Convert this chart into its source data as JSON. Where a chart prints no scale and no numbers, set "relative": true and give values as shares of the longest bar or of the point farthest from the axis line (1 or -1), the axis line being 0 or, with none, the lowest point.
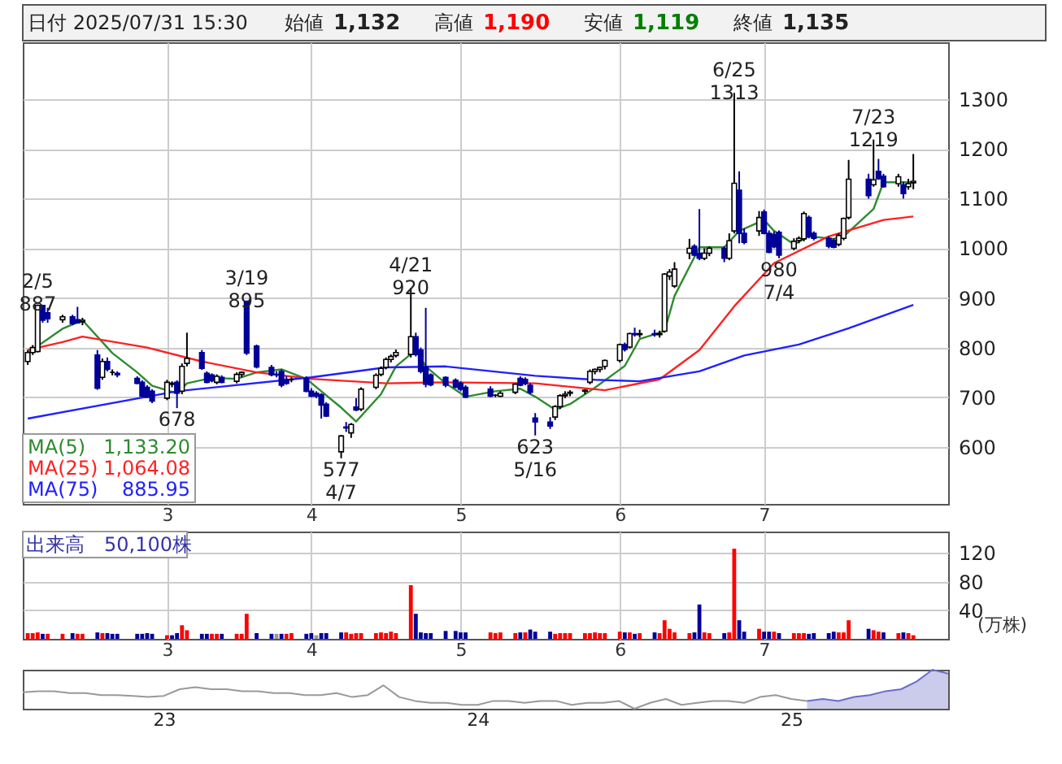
{
  "chart_data": [
    {
      "type": "candlestick",
      "title": "日付 2025/07/31 15:30",
      "annotations": [
        "始値",
        "1,132",
        "高値",
        "1,190",
        "安値",
        "1,119",
        "終値",
        "1,135",
        "1,133.20",
        "1,064.08",
        "885.95",
        {
          "text": "2/5\n887",
          "x": "2025-02-05",
          "y": 887
        },
        {
          "text": "678",
          "x": "2025-03-05",
          "y": 678
        },
        {
          "text": "3/19\n895",
          "x": "2025-03-19",
          "y": 895
        },
        {
          "text": "577\n4/7",
          "x": "2025-04-07",
          "y": 577
        },
        {
          "text": "4/21\n920",
          "x": "2025-04-21",
          "y": 920
        },
        {
          "text": "623\n5/16",
          "x": "2025-05-16",
          "y": 623
        },
        {
          "text": "6/25\n1313",
          "x": "2025-06-25",
          "y": 1313
        },
        {
          "text": "980\n7/4",
          "x": "2025-07-04",
          "y": 980
        },
        {
          "text": "7/23\n1219",
          "x": "2025-07-23",
          "y": 1219
        }
      ],
      "series": [
        {
          "type": "line",
          "name": "MA(5)",
          "color": "#2e8b2e",
          "x": [
            "2025-02-03",
            "2025-02-10",
            "2025-02-14",
            "2025-02-20",
            "2025-02-25",
            "2025-02-28",
            "2025-03-05",
            "2025-03-07",
            "2025-03-12",
            "2025-03-17",
            "2025-03-21",
            "2025-03-26",
            "2025-03-31",
            "2025-04-03",
            "2025-04-07",
            "2025-04-10",
            "2025-04-15",
            "2025-04-18",
            "2025-04-22",
            "2025-04-24",
            "2025-04-28",
            "2025-05-02",
            "2025-05-08",
            "2025-05-13",
            "2025-05-16",
            "2025-05-20",
            "2025-05-23",
            "2025-05-28",
            "2025-06-03",
            "2025-06-06",
            "2025-06-11",
            "2025-06-13",
            "2025-06-18",
            "2025-06-23",
            "2025-06-26",
            "2025-07-01",
            "2025-07-03",
            "2025-07-07",
            "2025-07-10",
            "2025-07-15",
            "2025-07-17",
            "2025-07-23",
            "2025-07-25",
            "2025-07-30",
            "2025-07-31"
          ],
          "values": [
            789,
            838,
            855,
            789,
            750,
            723,
            708,
            728,
            739,
            737,
            750,
            756,
            737,
            712,
            679,
            651,
            706,
            762,
            795,
            762,
            728,
            701,
            712,
            717,
            701,
            675,
            686,
            719,
            763,
            817,
            833,
            904,
            1002,
            1002,
            1035,
            1057,
            1035,
            1008,
            1024,
            1019,
            1024,
            1079,
            1133,
            1133,
            1133
          ]
        },
        {
          "type": "line",
          "name": "MA(25)",
          "color": "#ff2020",
          "x": [
            "2025-02-03",
            "2025-02-10",
            "2025-02-14",
            "2025-02-27",
            "2025-03-10",
            "2025-03-21",
            "2025-04-01",
            "2025-04-16",
            "2025-04-28",
            "2025-05-16",
            "2025-05-30",
            "2025-06-10",
            "2025-06-18",
            "2025-06-25",
            "2025-07-03",
            "2025-07-14",
            "2025-07-25",
            "2025-07-31"
          ],
          "values": [
            795,
            811,
            822,
            800,
            772,
            750,
            737,
            728,
            730,
            728,
            714,
            736,
            795,
            883,
            970,
            1024,
            1057,
            1064
          ]
        },
        {
          "type": "line",
          "name": "MA(75)",
          "color": "#2020ff",
          "x": [
            "2025-02-03",
            "2025-03-05",
            "2025-04-01",
            "2025-04-16",
            "2025-04-28",
            "2025-05-16",
            "2025-05-28",
            "2025-06-06",
            "2025-06-18",
            "2025-06-27",
            "2025-07-08",
            "2025-07-18",
            "2025-07-31"
          ],
          "values": [
            657,
            712,
            740,
            760,
            762,
            743,
            735,
            732,
            752,
            784,
            806,
            839,
            886
          ]
        },
        {
          "type": "candlestick",
          "colors": [
            "#ffffff",
            "#ffffff",
            "#ffffff",
            "#000099",
            "#000099",
            "#ffffff",
            "#000099",
            "#000099",
            "#ffffff",
            "#000099",
            "#ffffff",
            "#000099",
            "#000000",
            "#000099",
            "#000099",
            "#000099",
            "#000099",
            "#000099",
            "#ffffff",
            "#ffffff",
            "#000099",
            "#ffffff",
            "#ffffff",
            "#000099",
            "#000099",
            "#000099",
            "#ffffff",
            "#000099",
            "#ffffff",
            "#ffffff",
            "#000099",
            "#000099",
            "#000099",
            "#000099",
            "#000099",
            "#000099",
            "#000000",
            "#000099",
            "#000099",
            "#000099",
            "#000099",
            "#000099",
            "#ffffff",
            "#000099",
            "#ffffff",
            "#000099",
            "#ffffff",
            "#ffffff",
            "#ffffff",
            "#ffffff",
            "#ffffff",
            "#ffffff",
            "#ffffff",
            "#000099",
            "#000099",
            "#000099",
            "#000099",
            "#000099",
            "#000099",
            "#000099",
            "#000099",
            "#000099",
            "#000000",
            "#ffffff",
            "#ffffff",
            "#000099",
            "#000099",
            "#000099",
            "#000099",
            "#000099",
            "#ffffff",
            "#ffffff",
            "#ffffff",
            "#ffffff",
            "#ffffff",
            "#ffffff",
            "#ffffff",
            "#ffffff",
            "#ffffff",
            "#ffffff",
            "#000099",
            "#ffffff",
            "#000099",
            "#ffffff",
            "#000099",
            "#ffffff",
            "#ffffff",
            "#ffffff",
            "#ffffff",
            "#ffffff",
            "#000099",
            "#000099",
            "#ffffff",
            "#ffffff",
            "#000099",
            "#ffffff",
            "#ffffff",
            "#000099",
            "#000099",
            "#ffffff",
            "#000099",
            "#000099",
            "#000099",
            "#000099",
            "#ffffff",
            "#ffffff",
            "#ffffff",
            "#000099",
            "#000099",
            "#000099",
            "#000099",
            "#ffffff",
            "#ffffff",
            "#ffffff",
            "#000099",
            "#ffffff",
            "#000099",
            "#000099",
            "#ffffff",
            "#000099",
            "#ffffff",
            "#ffffff"
          ],
          "x": [
            "2025-02-03",
            "2025-02-04",
            "2025-02-05",
            "2025-02-06",
            "2025-02-07",
            "2025-02-10",
            "2025-02-12",
            "2025-02-13",
            "2025-02-14",
            "2025-02-17",
            "2025-02-18",
            "2025-02-19",
            "2025-02-20",
            "2025-02-21",
            "2025-02-25",
            "2025-02-26",
            "2025-02-27",
            "2025-02-28",
            "2025-03-03",
            "2025-03-04",
            "2025-03-05",
            "2025-03-06",
            "2025-03-07",
            "2025-03-10",
            "2025-03-11",
            "2025-03-12",
            "2025-03-13",
            "2025-03-14",
            "2025-03-17",
            "2025-03-18",
            "2025-03-19",
            "2025-03-21",
            "2025-03-24",
            "2025-03-25",
            "2025-03-26",
            "2025-03-27",
            "2025-03-28",
            "2025-03-31",
            "2025-04-01",
            "2025-04-02",
            "2025-04-03",
            "2025-04-04",
            "2025-04-07",
            "2025-04-08",
            "2025-04-09",
            "2025-04-10",
            "2025-04-11",
            "2025-04-14",
            "2025-04-15",
            "2025-04-16",
            "2025-04-17",
            "2025-04-18",
            "2025-04-21",
            "2025-04-22",
            "2025-04-23",
            "2025-04-24",
            "2025-04-25",
            "2025-04-28",
            "2025-04-30",
            "2025-05-01",
            "2025-05-02",
            "2025-05-07",
            "2025-05-08",
            "2025-05-09",
            "2025-05-12",
            "2025-05-13",
            "2025-05-14",
            "2025-05-15",
            "2025-05-16",
            "2025-05-19",
            "2025-05-20",
            "2025-05-21",
            "2025-05-22",
            "2025-05-23",
            "2025-05-26",
            "2025-05-27",
            "2025-05-28",
            "2025-05-29",
            "2025-05-30",
            "2025-06-02",
            "2025-06-03",
            "2025-06-04",
            "2025-06-05",
            "2025-06-06",
            "2025-06-09",
            "2025-06-10",
            "2025-06-11",
            "2025-06-12",
            "2025-06-13",
            "2025-06-16",
            "2025-06-17",
            "2025-06-18",
            "2025-06-19",
            "2025-06-20",
            "2025-06-23",
            "2025-06-24",
            "2025-06-25",
            "2025-06-26",
            "2025-06-27",
            "2025-06-30",
            "2025-07-01",
            "2025-07-02",
            "2025-07-03",
            "2025-07-04",
            "2025-07-07",
            "2025-07-08",
            "2025-07-09",
            "2025-07-10",
            "2025-07-11",
            "2025-07-14",
            "2025-07-15",
            "2025-07-16",
            "2025-07-17",
            "2025-07-18",
            "2025-07-22",
            "2025-07-23",
            "2025-07-24",
            "2025-07-25",
            "2025-07-28",
            "2025-07-29",
            "2025-07-30",
            "2025-07-31"
          ],
          "ohlc": [
            [
              772,
              795,
              765,
              790
            ],
            [
              790,
              805,
              785,
              800
            ],
            [
              792,
              887,
              790,
              885
            ],
            [
              885,
              886,
              850,
              855
            ],
            [
              870,
              880,
              850,
              858
            ],
            [
              856,
              866,
              850,
              862
            ],
            [
              862,
              866,
              845,
              848
            ],
            [
              856,
              882,
              848,
              850
            ],
            [
              852,
              860,
              845,
              855
            ],
            [
              785,
              795,
              715,
              718
            ],
            [
              740,
              778,
              735,
              772
            ],
            [
              772,
              780,
              752,
              756
            ],
            [
              750,
              756,
              744,
              750
            ],
            [
              748,
              752,
              740,
              745
            ],
            [
              738,
              742,
              726,
              728
            ],
            [
              730,
              734,
              700,
              702
            ],
            [
              720,
              724,
              698,
              700
            ],
            [
              712,
              716,
              688,
              692
            ],
            [
              698,
              735,
              694,
              730
            ],
            [
              726,
              732,
              720,
              728
            ],
            [
              730,
              734,
              678,
              708
            ],
            [
              712,
              768,
              706,
              762
            ],
            [
              768,
              830,
              762,
              778
            ],
            [
              790,
              795,
              755,
              758
            ],
            [
              748,
              752,
              728,
              730
            ],
            [
              745,
              748,
              730,
              733
            ],
            [
              730,
              746,
              726,
              742
            ],
            [
              740,
              744,
              728,
              730
            ],
            [
              732,
              750,
              728,
              746
            ],
            [
              746,
              752,
              740,
              750
            ],
            [
              893,
              895,
              785,
              789
            ],
            [
              803,
              806,
              758,
              761
            ],
            [
              760,
              765,
              742,
              745
            ],
            [
              746,
              752,
              740,
              745
            ],
            [
              752,
              756,
              720,
              724
            ],
            [
              735,
              742,
              725,
              728
            ],
            [
              735,
              740,
              730,
              735
            ],
            [
              738,
              742,
              710,
              712
            ],
            [
              712,
              718,
              700,
              702
            ],
            [
              708,
              712,
              698,
              702
            ],
            [
              705,
              708,
              657,
              684
            ],
            [
              686,
              690,
              660,
              662
            ],
            [
              590,
              624,
              577,
              622
            ],
            [
              640,
              650,
              630,
              638
            ],
            [
              628,
              648,
              618,
              645
            ],
            [
              680,
              698,
              672,
              674
            ],
            [
              676,
              720,
              672,
              716
            ],
            [
              720,
              748,
              716,
              744
            ],
            [
              746,
              762,
              742,
              758
            ],
            [
              760,
              780,
              756,
              776
            ],
            [
              776,
              786,
              770,
              782
            ],
            [
              784,
              796,
              780,
              790
            ],
            [
              786,
              920,
              780,
              822
            ],
            [
              822,
              830,
              782,
              786
            ],
            [
              795,
              800,
              748,
              752
            ],
            [
              760,
              880,
              720,
              726
            ],
            [
              745,
              748,
              722,
              725
            ],
            [
              740,
              742,
              720,
              724
            ],
            [
              734,
              738,
              718,
              720
            ],
            [
              728,
              732,
              712,
              716
            ],
            [
              720,
              724,
              698,
              700
            ],
            [
              716,
              722,
              700,
              702
            ],
            [
              704,
              706,
              700,
              704
            ],
            [
              702,
              712,
              700,
              708
            ],
            [
              710,
              728,
              706,
              726
            ],
            [
              738,
              742,
              722,
              724
            ],
            [
              736,
              740,
              724,
              728
            ],
            [
              724,
              728,
              706,
              710
            ],
            [
              658,
              668,
              623,
              650
            ],
            [
              650,
              660,
              636,
              642
            ],
            [
              660,
              684,
              654,
              681
            ],
            [
              681,
              706,
              676,
              703
            ],
            [
              703,
              712,
              698,
              706
            ],
            [
              708,
              714,
              702,
              710
            ],
            [
              712,
              716,
              706,
              714
            ],
            [
              730,
              756,
              726,
              752
            ],
            [
              752,
              758,
              746,
              756
            ],
            [
              756,
              762,
              750,
              760
            ],
            [
              762,
              776,
              756,
              774
            ],
            [
              774,
              808,
              770,
              806
            ],
            [
              806,
              810,
              792,
              796
            ],
            [
              801,
              830,
              798,
              828
            ],
            [
              828,
              840,
              822,
              826
            ],
            [
              826,
              836,
              820,
              828
            ],
            [
              828,
              836,
              822,
              826
            ],
            [
              826,
              834,
              820,
              828
            ],
            [
              833,
              950,
              830,
              948
            ],
            [
              944,
              958,
              936,
              952
            ],
            [
              924,
              972,
              920,
              958
            ],
            [
              990,
              1019,
              978,
              1000
            ],
            [
              1004,
              1008,
              984,
              986
            ],
            [
              990,
              1079,
              976,
              980
            ],
            [
              980,
              1000,
              976,
              990
            ],
            [
              990,
              1004,
              984,
              1000
            ],
            [
              1000,
              1004,
              972,
              980
            ],
            [
              980,
              1030,
              976,
              1015
            ],
            [
              1035,
              1313,
              1030,
              1131
            ],
            [
              1117,
              1155,
              1010,
              1030
            ],
            [
              1030,
              1040,
              1008,
              1012
            ],
            [
              1035,
              1075,
              1025,
              1062
            ],
            [
              1073,
              1078,
              1028,
              1030
            ],
            [
              1030,
              1036,
              990,
              992
            ],
            [
              1028,
              1034,
              1000,
              1003
            ],
            [
              1032,
              1036,
              980,
              986
            ],
            [
              1000,
              1020,
              996,
              1014
            ],
            [
              1016,
              1024,
              1010,
              1020
            ],
            [
              1019,
              1074,
              1014,
              1070
            ],
            [
              1062,
              1066,
              1020,
              1024
            ],
            [
              1030,
              1034,
              1016,
              1020
            ],
            [
              1020,
              1024,
              1000,
              1004
            ],
            [
              1016,
              1020,
              1000,
              1002
            ],
            [
              1008,
              1030,
              1004,
              1026
            ],
            [
              1020,
              1062,
              1016,
              1060
            ],
            [
              1062,
              1178,
              1058,
              1139
            ],
            [
              1139,
              1150,
              1100,
              1106
            ],
            [
              1128,
              1219,
              1124,
              1138
            ],
            [
              1155,
              1180,
              1138,
              1140
            ],
            [
              1145,
              1150,
              1122,
              1124
            ],
            [
              1130,
              1150,
              1124,
              1144
            ],
            [
              1128,
              1134,
              1100,
              1110
            ],
            [
              1124,
              1140,
              1118,
              1130
            ],
            [
              1132,
              1190,
              1119,
              1135
            ]
          ]
        }
      ],
      "xlim": [
        "2025-02-02",
        "2025-08-07"
      ],
      "xticks": [
        {
          "value": "2025-03-03",
          "label": "3"
        },
        {
          "value": "2025-04-01",
          "label": "4"
        },
        {
          "value": "2025-05-01",
          "label": "5"
        },
        {
          "value": "2025-06-02",
          "label": "6"
        },
        {
          "value": "2025-07-01",
          "label": "7"
        }
      ],
      "ylim": [
        485,
        1415
      ],
      "yticks": [
        600,
        700,
        800,
        900,
        1000,
        1100,
        1200,
        1300
      ],
      "grid": true,
      "legend": "bottom left"
    },
    {
      "type": "bar",
      "title": "出来高　50,100株",
      "ylabel": "(万株)",
      "x": [
        "2025-02-03",
        "2025-02-04",
        "2025-02-05",
        "2025-02-06",
        "2025-02-07",
        "2025-02-10",
        "2025-02-12",
        "2025-02-13",
        "2025-02-14",
        "2025-02-17",
        "2025-02-18",
        "2025-02-19",
        "2025-02-20",
        "2025-02-21",
        "2025-02-25",
        "2025-02-26",
        "2025-02-27",
        "2025-02-28",
        "2025-03-03",
        "2025-03-04",
        "2025-03-05",
        "2025-03-06",
        "2025-03-07",
        "2025-03-10",
        "2025-03-11",
        "2025-03-12",
        "2025-03-13",
        "2025-03-14",
        "2025-03-17",
        "2025-03-18",
        "2025-03-19",
        "2025-03-21",
        "2025-03-24",
        "2025-03-25",
        "2025-03-26",
        "2025-03-27",
        "2025-03-28",
        "2025-03-31",
        "2025-04-01",
        "2025-04-02",
        "2025-04-03",
        "2025-04-04",
        "2025-04-07",
        "2025-04-08",
        "2025-04-09",
        "2025-04-10",
        "2025-04-11",
        "2025-04-14",
        "2025-04-15",
        "2025-04-16",
        "2025-04-17",
        "2025-04-18",
        "2025-04-21",
        "2025-04-22",
        "2025-04-23",
        "2025-04-24",
        "2025-04-25",
        "2025-04-28",
        "2025-04-30",
        "2025-05-01",
        "2025-05-02",
        "2025-05-07",
        "2025-05-08",
        "2025-05-09",
        "2025-05-12",
        "2025-05-13",
        "2025-05-14",
        "2025-05-15",
        "2025-05-16",
        "2025-05-19",
        "2025-05-20",
        "2025-05-21",
        "2025-05-22",
        "2025-05-23",
        "2025-05-26",
        "2025-05-27",
        "2025-05-28",
        "2025-05-29",
        "2025-05-30",
        "2025-06-02",
        "2025-06-03",
        "2025-06-04",
        "2025-06-05",
        "2025-06-06",
        "2025-06-09",
        "2025-06-10",
        "2025-06-11",
        "2025-06-12",
        "2025-06-13",
        "2025-06-16",
        "2025-06-17",
        "2025-06-18",
        "2025-06-19",
        "2025-06-20",
        "2025-06-23",
        "2025-06-24",
        "2025-06-25",
        "2025-06-26",
        "2025-06-27",
        "2025-06-30",
        "2025-07-01",
        "2025-07-02",
        "2025-07-03",
        "2025-07-04",
        "2025-07-07",
        "2025-07-08",
        "2025-07-09",
        "2025-07-10",
        "2025-07-11",
        "2025-07-14",
        "2025-07-15",
        "2025-07-16",
        "2025-07-17",
        "2025-07-18",
        "2025-07-22",
        "2025-07-23",
        "2025-07-24",
        "2025-07-25",
        "2025-07-28",
        "2025-07-29",
        "2025-07-30",
        "2025-07-31"
      ],
      "values": [
        8,
        8,
        9,
        7,
        7,
        7,
        8,
        7,
        7,
        9,
        8,
        8,
        7,
        7,
        7,
        7,
        8,
        7,
        5,
        5,
        8,
        19,
        12,
        7,
        7,
        7,
        7,
        7,
        7,
        7,
        35,
        8,
        7,
        7,
        7,
        7,
        8,
        7,
        8,
        5,
        8,
        8,
        9,
        9,
        7,
        8,
        8,
        8,
        9,
        8,
        10,
        8,
        75,
        35,
        9,
        8,
        8,
        11,
        11,
        9,
        9,
        9,
        8,
        9,
        8,
        9,
        9,
        13,
        10,
        10,
        7,
        8,
        8,
        8,
        8,
        8,
        9,
        8,
        8,
        10,
        9,
        9,
        7,
        8,
        9,
        8,
        26,
        14,
        9,
        8,
        9,
        48,
        9,
        8,
        8,
        9,
        126,
        26,
        10,
        14,
        10,
        10,
        10,
        8,
        8,
        8,
        8,
        7,
        8,
        8,
        10,
        9,
        9,
        26,
        14,
        12,
        10,
        9,
        8,
        9,
        8,
        5
      ],
      "colors": [
        "#ff0000",
        "#ff0000",
        "#ff0000",
        "#000099",
        "#ff0000",
        "#ff0000",
        "#000099",
        "#ff0000",
        "#ff0000",
        "#000099",
        "#ff0000",
        "#000099",
        "#000099",
        "#000099",
        "#000099",
        "#000099",
        "#000099",
        "#000099",
        "#ff0000",
        "#000099",
        "#000099",
        "#ff0000",
        "#ff0000",
        "#000099",
        "#000099",
        "#ff0000",
        "#ff0000",
        "#000099",
        "#ff0000",
        "#ff0000",
        "#ff0000",
        "#000099",
        "#000099",
        "#999999",
        "#000099",
        "#ff0000",
        "#ff0000",
        "#000099",
        "#000099",
        "#999999",
        "#000099",
        "#000099",
        "#000099",
        "#ff0000",
        "#ff0000",
        "#ff0000",
        "#ff0000",
        "#ff0000",
        "#ff0000",
        "#ff0000",
        "#ff0000",
        "#ff0000",
        "#ff0000",
        "#000099",
        "#000099",
        "#000099",
        "#000099",
        "#000099",
        "#000099",
        "#000099",
        "#000099",
        "#ff0000",
        "#ff0000",
        "#ff0000",
        "#ff0000",
        "#000099",
        "#ff0000",
        "#000099",
        "#000099",
        "#000099",
        "#ff0000",
        "#ff0000",
        "#ff0000",
        "#ff0000",
        "#ff0000",
        "#ff0000",
        "#ff0000",
        "#ff0000",
        "#ff0000",
        "#ff0000",
        "#000099",
        "#ff0000",
        "#000099",
        "#ff0000",
        "#000099",
        "#ff0000",
        "#ff0000",
        "#ff0000",
        "#ff0000",
        "#ff0000",
        "#000099",
        "#000099",
        "#ff0000",
        "#ff0000",
        "#000099",
        "#ff0000",
        "#ff0000",
        "#000099",
        "#000099",
        "#ff0000",
        "#000099",
        "#000099",
        "#ff0000",
        "#000099",
        "#ff0000",
        "#ff0000",
        "#ff0000",
        "#000099",
        "#000099",
        "#000099",
        "#000099",
        "#ff0000",
        "#ff0000",
        "#ff0000",
        "#000099",
        "#ff0000",
        "#ff0000",
        "#000099",
        "#ff0000",
        "#000099",
        "#ff0000",
        "#ff0000"
      ],
      "xlim": [
        "2025-02-02",
        "2025-08-07"
      ],
      "xticks": [
        {
          "value": "2025-03-03",
          "label": "3"
        },
        {
          "value": "2025-04-01",
          "label": "4"
        },
        {
          "value": "2025-05-01",
          "label": "5"
        },
        {
          "value": "2025-06-02",
          "label": "6"
        },
        {
          "value": "2025-07-01",
          "label": "7"
        }
      ],
      "ylim": [
        0,
        150
      ],
      "yticks": [
        40,
        80,
        120
      ],
      "grid": true
    },
    {
      "type": "line",
      "relative": true,
      "tick_labels": "x",
      "categories": [
        null,
        null,
        null,
        null,
        null,
        null,
        null,
        null,
        null,
        "23",
        null,
        null,
        null,
        null,
        null,
        null,
        null,
        null,
        null,
        null,
        null,
        null,
        null,
        null,
        null,
        null,
        null,
        null,
        null,
        "24",
        null,
        null,
        null,
        null,
        null,
        null,
        null,
        null,
        null,
        null,
        null,
        null,
        null,
        null,
        null,
        null,
        null,
        null,
        null,
        "25",
        null,
        null,
        null,
        null,
        null,
        null,
        null,
        null,
        null,
        null
      ],
      "series": [
        {
          "type": "line",
          "color": "#999999",
          "values": [
            0.42,
            0.45,
            0.45,
            0.4,
            0.4,
            0.35,
            0.35,
            0.33,
            0.3,
            0.33,
            0.5,
            0.55,
            0.5,
            0.5,
            0.45,
            0.45,
            0.4,
            0.4,
            0.35,
            0.35,
            0.4,
            0.3,
            0.35,
            0.6,
            0.3,
            0.2,
            0.15,
            0.15,
            0.1,
            0.1,
            0.2,
            0.2,
            0.15,
            0.2,
            0.2,
            0.1,
            0.15,
            0.15,
            0.2,
            0,
            0.15,
            0.25,
            0.1,
            0.15,
            0.2,
            0.2,
            0.15,
            0.3,
            0.35,
            0.25,
            0.2,
            null,
            null,
            null,
            null,
            null,
            null,
            null,
            null,
            null
          ]
        },
        {
          "type": "area",
          "color": "#6b6bc8",
          "values": [
            null,
            null,
            null,
            null,
            null,
            null,
            null,
            null,
            null,
            null,
            null,
            null,
            null,
            null,
            null,
            null,
            null,
            null,
            null,
            null,
            null,
            null,
            null,
            null,
            null,
            null,
            null,
            null,
            null,
            null,
            null,
            null,
            null,
            null,
            null,
            null,
            null,
            null,
            null,
            null,
            null,
            null,
            null,
            null,
            null,
            null,
            null,
            null,
            null,
            null,
            0.2,
            0.25,
            0.2,
            0.3,
            0.35,
            0.45,
            0.5,
            0.7,
            1.0,
            0.9
          ]
        }
      ]
    }
  ]
}
